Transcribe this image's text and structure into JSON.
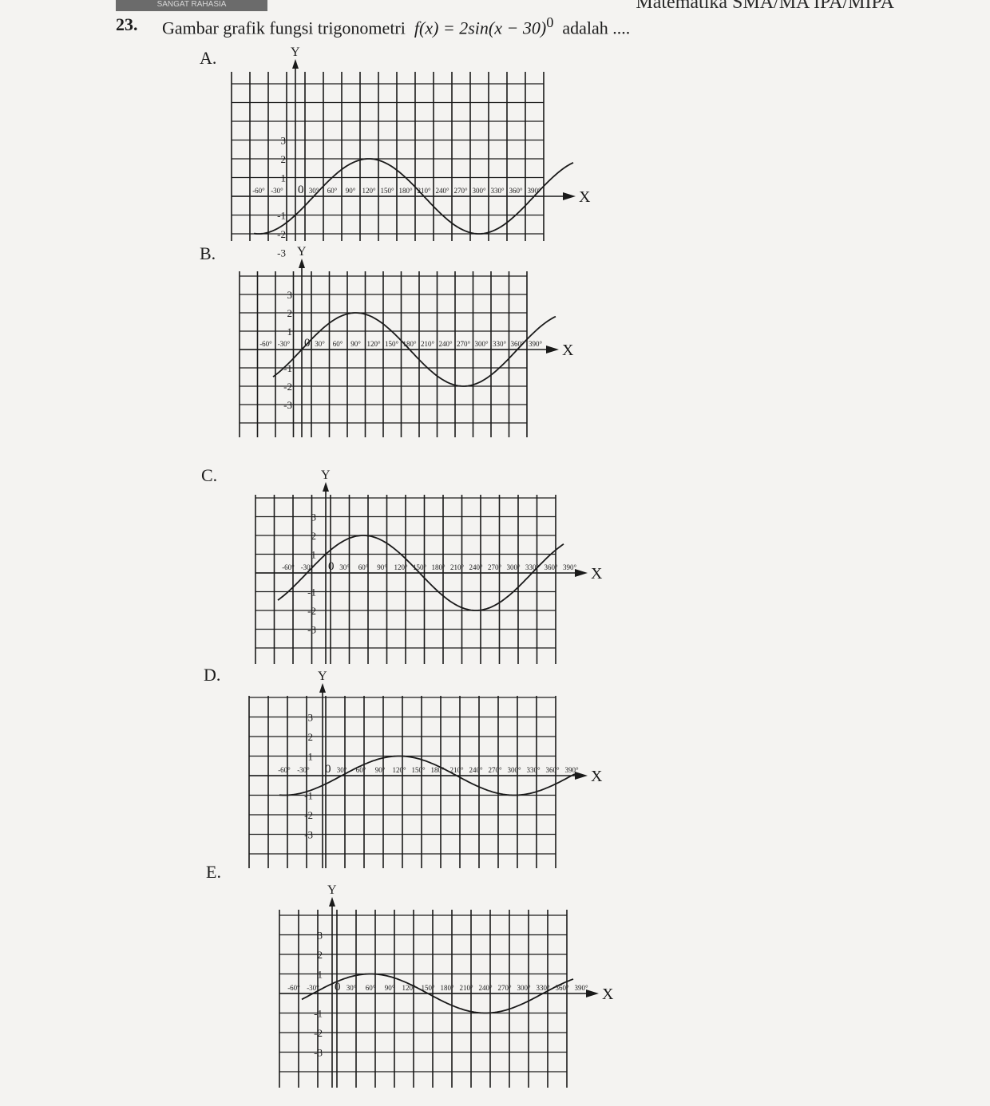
{
  "header": {
    "badge": "SANGAT RAHASIA",
    "subject": "Matematika SMA/MA IPA/MIPA"
  },
  "question": {
    "number": "23.",
    "text_before": "Gambar grafik fungsi trigonometri",
    "formula": "f(x) = 2sin(x − 30)",
    "formula_sup": "0",
    "text_after": "adalah ...."
  },
  "axis_labels": {
    "x": "X",
    "y": "Y"
  },
  "y_ticks": [
    "3",
    "2",
    "1",
    "-1",
    "-2",
    "-3"
  ],
  "x_tick_labels": [
    "-60°",
    "-30°",
    "0",
    "30°",
    "60°",
    "90°",
    "120°",
    "150°",
    "180°",
    "210°",
    "240°",
    "270°",
    "300°",
    "330°",
    "360°",
    "390°"
  ],
  "options": [
    {
      "label": "A.",
      "amplitude": 2,
      "phase_deg": 30
    },
    {
      "label": "B.",
      "amplitude": 2,
      "phase_deg": 0
    },
    {
      "label": "C.",
      "amplitude": 2,
      "phase_deg": -30
    },
    {
      "label": "D.",
      "amplitude": 1,
      "phase_deg": 30
    },
    {
      "label": "E.",
      "amplitude": 1,
      "phase_deg": -30
    }
  ],
  "colors": {
    "ink": "#1a1a1a",
    "paper": "#f4f3f1"
  }
}
